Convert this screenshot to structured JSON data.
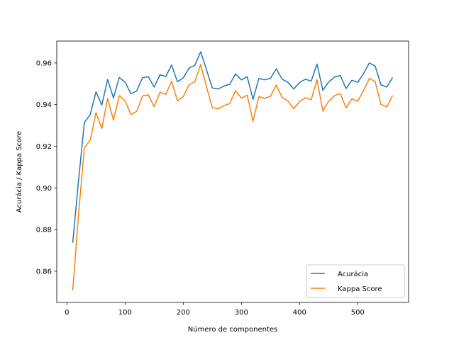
{
  "chart_data": {
    "type": "line",
    "title": "",
    "xlabel": "Número de componentes",
    "ylabel": "Acurácia / Kappa Score",
    "xlim": [
      -17.5,
      587.5
    ],
    "ylim": [
      0.845,
      0.9705
    ],
    "xticks": [
      0,
      100,
      200,
      300,
      400,
      500
    ],
    "yticks": [
      0.86,
      0.88,
      0.9,
      0.92,
      0.94,
      0.96
    ],
    "ytick_labels": [
      "0.86",
      "0.88",
      "0.90",
      "0.92",
      "0.94",
      "0.96"
    ],
    "legend_position": "lower-right",
    "grid": false,
    "x": [
      10,
      20,
      30,
      40,
      50,
      60,
      70,
      80,
      90,
      100,
      110,
      120,
      130,
      140,
      150,
      160,
      170,
      180,
      190,
      200,
      210,
      220,
      230,
      240,
      250,
      260,
      270,
      280,
      290,
      300,
      310,
      320,
      330,
      340,
      350,
      360,
      370,
      380,
      390,
      400,
      410,
      420,
      430,
      440,
      450,
      460,
      470,
      480,
      490,
      500,
      510,
      520,
      530,
      540,
      550,
      560
    ],
    "series": [
      {
        "name": "Acurácia",
        "color": "#1f77b4",
        "values": [
          0.8737,
          0.9036,
          0.9314,
          0.9351,
          0.9461,
          0.9398,
          0.9521,
          0.9432,
          0.953,
          0.9508,
          0.9452,
          0.9466,
          0.9529,
          0.9534,
          0.9484,
          0.9543,
          0.9535,
          0.959,
          0.951,
          0.9528,
          0.9575,
          0.9589,
          0.9654,
          0.9567,
          0.948,
          0.9475,
          0.9489,
          0.9498,
          0.9548,
          0.9519,
          0.9534,
          0.9425,
          0.9525,
          0.9519,
          0.9526,
          0.9572,
          0.9522,
          0.9507,
          0.9475,
          0.9506,
          0.9522,
          0.9513,
          0.9595,
          0.9469,
          0.9508,
          0.9532,
          0.954,
          0.9477,
          0.9517,
          0.9507,
          0.9549,
          0.96,
          0.9585,
          0.9495,
          0.9484,
          0.953
        ]
      },
      {
        "name": "Kappa Score",
        "color": "#ff7f0e",
        "values": [
          0.8507,
          0.8875,
          0.9193,
          0.9229,
          0.9361,
          0.9285,
          0.943,
          0.9326,
          0.9443,
          0.9418,
          0.9352,
          0.9368,
          0.9442,
          0.9447,
          0.939,
          0.9459,
          0.9449,
          0.9512,
          0.9418,
          0.9438,
          0.9495,
          0.951,
          0.9593,
          0.9485,
          0.9385,
          0.938,
          0.9395,
          0.9405,
          0.9467,
          0.9431,
          0.9445,
          0.932,
          0.9438,
          0.943,
          0.944,
          0.9494,
          0.9434,
          0.9418,
          0.938,
          0.9415,
          0.9433,
          0.9423,
          0.952,
          0.937,
          0.9416,
          0.9443,
          0.9453,
          0.9385,
          0.9428,
          0.9416,
          0.9467,
          0.9526,
          0.951,
          0.9401,
          0.9389,
          0.9444
        ]
      }
    ]
  }
}
